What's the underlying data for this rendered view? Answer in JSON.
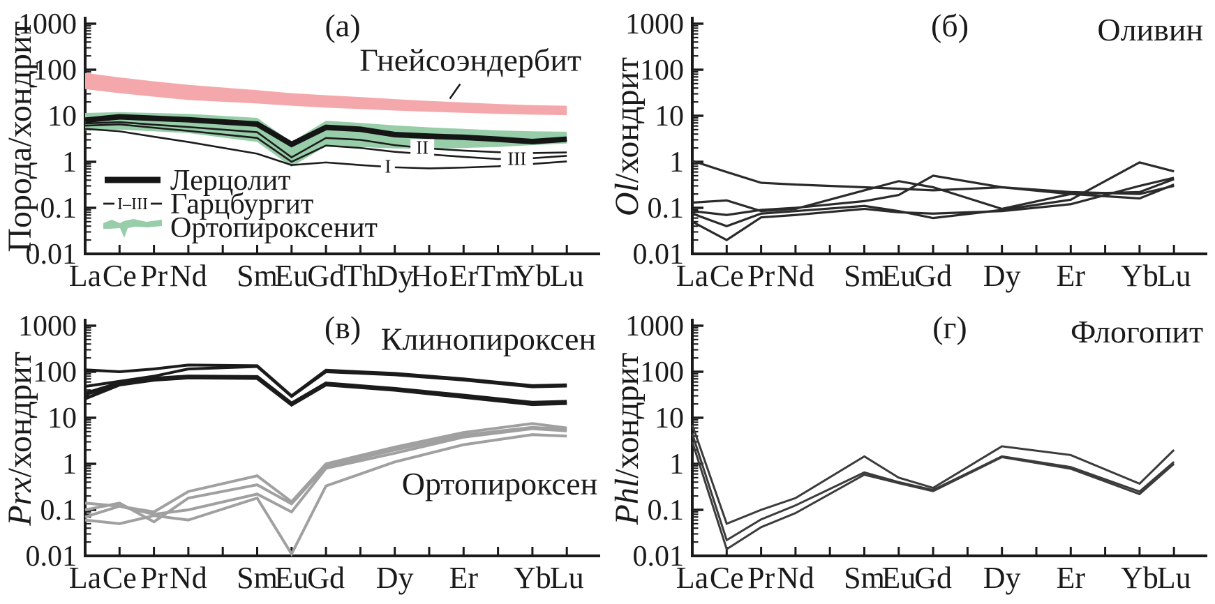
{
  "figure": {
    "background": "#ffffff",
    "axis_color": "#1a1a1a",
    "y_tick_labels": [
      "1000",
      "100",
      "10",
      "1",
      "0.1",
      "0.01"
    ],
    "y_tick_values": [
      1000,
      100,
      10,
      1,
      0.1,
      0.01
    ],
    "ylim": [
      0.01,
      1000
    ]
  },
  "chart_data": [
    {
      "id": "a",
      "type": "line",
      "letter": "(а)",
      "ylabel_italic": "",
      "ylabel_rest": "Порода/хондрит",
      "categories": [
        "La",
        "Ce",
        "Pr",
        "Nd",
        "Sm",
        "Eu",
        "Gd",
        "Th",
        "Dy",
        "Ho",
        "Er",
        "Tm",
        "Yb",
        "Lu"
      ],
      "category_slots": [
        0,
        1,
        2,
        3,
        5,
        6,
        7,
        8,
        9,
        10,
        11,
        12,
        13,
        14
      ],
      "bands": [
        {
          "name": "Гнейсоэндербит",
          "color": "#F5A8AB",
          "upper": [
            85,
            68,
            56,
            47,
            36,
            31,
            28,
            25.5,
            23,
            21,
            19.5,
            18,
            17,
            16.5
          ],
          "lower": [
            38,
            31,
            26,
            22,
            18.5,
            16.5,
            15,
            14,
            13,
            12.2,
            11.6,
            11,
            10.6,
            10.3
          ]
        },
        {
          "name": "Ортопироксенит",
          "color": "#97CDA8",
          "upper": [
            11.5,
            12,
            11.5,
            11,
            9,
            2.7,
            7.8,
            7,
            6.2,
            5.6,
            5.2,
            4.8,
            4.6,
            4.5
          ],
          "lower": [
            4.8,
            5,
            4.6,
            4.2,
            2.7,
            0.78,
            2.2,
            2.1,
            1.95,
            1.9,
            2.0,
            2.1,
            2.3,
            2.5
          ]
        }
      ],
      "series": [
        {
          "name": "Лерцолит",
          "color": "#151515",
          "width": 8,
          "values": [
            8,
            9.5,
            8.8,
            8.2,
            6.6,
            2.4,
            5.6,
            5.1,
            3.9,
            3.6,
            3.4,
            3.1,
            2.75,
            3.1
          ]
        },
        {
          "name": "Гарцбургит II",
          "color": "#1c1c1c",
          "width": 2.6,
          "values": [
            6.8,
            7.3,
            6.4,
            5.7,
            4.4,
            1.25,
            3.3,
            3.0,
            2.3,
            1.95,
            1.75,
            1.62,
            1.55,
            1.6
          ]
        },
        {
          "name": "Гарцбургит III",
          "color": "#1c1c1c",
          "width": 2.6,
          "values": [
            6.1,
            6.5,
            5.5,
            4.7,
            3.3,
            1.0,
            2.25,
            2.0,
            1.65,
            1.45,
            1.28,
            1.15,
            1.2,
            1.35
          ]
        },
        {
          "name": "Гарцбургит I",
          "color": "#1c1c1c",
          "width": 2.6,
          "values": [
            5.2,
            4.6,
            3.5,
            2.7,
            1.5,
            0.85,
            0.97,
            0.85,
            0.76,
            0.72,
            0.75,
            0.8,
            0.9,
            1.02
          ]
        }
      ],
      "line_labels": [
        {
          "text": "I",
          "slot": 8.8,
          "value": 0.8
        },
        {
          "text": "II",
          "slot": 9.8,
          "value": 2.05
        },
        {
          "text": "III",
          "slot": 12.55,
          "value": 1.17
        }
      ],
      "annotations": [
        {
          "text": "Гнейсоэндербит",
          "slot": 11.2,
          "value": 95,
          "anchor": "middle",
          "pointer": {
            "from_slot": 10.9,
            "from_value": 49,
            "to_slot": 10.6,
            "to_value": 23.5
          }
        }
      ],
      "legend": {
        "items": [
          {
            "symbol": "thick-line",
            "label": "Лерцолит"
          },
          {
            "symbol": "range-line",
            "range_text": "I–III",
            "label": "Гарцбургит"
          },
          {
            "symbol": "band",
            "label": "Ортопироксенит"
          }
        ]
      }
    },
    {
      "id": "b",
      "type": "line",
      "letter": "(б)",
      "ylabel_italic": "Ol",
      "ylabel_rest": "/хондрит",
      "categories": [
        "La",
        "Ce",
        "Pr",
        "Nd",
        "Sm",
        "Eu",
        "Gd",
        "Dy",
        "Er",
        "Yb",
        "Lu"
      ],
      "category_slots": [
        0,
        1,
        2,
        3,
        5,
        6,
        7,
        9,
        11,
        13,
        14
      ],
      "bands": [],
      "series": [
        {
          "name": "оливин 1",
          "color": "#2a2a2a",
          "width": 3.2,
          "values": [
            1.05,
            0.6,
            0.35,
            0.32,
            0.28,
            0.26,
            0.24,
            0.28,
            0.22,
            0.2,
            0.3
          ]
        },
        {
          "name": "оливин 2",
          "color": "#2a2a2a",
          "width": 3.2,
          "values": [
            0.13,
            0.145,
            0.085,
            0.095,
            0.24,
            0.38,
            0.28,
            0.095,
            0.2,
            0.22,
            0.42
          ]
        },
        {
          "name": "оливин 3",
          "color": "#2a2a2a",
          "width": 3.2,
          "values": [
            0.085,
            0.07,
            0.09,
            0.1,
            0.14,
            0.19,
            0.5,
            0.28,
            0.2,
            0.16,
            0.32
          ]
        },
        {
          "name": "оливин 4",
          "color": "#2a2a2a",
          "width": 3.2,
          "values": [
            0.075,
            0.04,
            0.075,
            0.085,
            0.11,
            0.085,
            0.06,
            0.09,
            0.15,
            0.97,
            0.62
          ]
        },
        {
          "name": "оливин 5",
          "color": "#2a2a2a",
          "width": 3.2,
          "values": [
            0.05,
            0.02,
            0.062,
            0.07,
            0.095,
            0.08,
            0.075,
            0.085,
            0.12,
            0.3,
            0.45
          ]
        }
      ],
      "line_labels": [],
      "annotations": [
        {
          "text": "Оливин",
          "slot": 14.85,
          "value": 430,
          "anchor": "end"
        }
      ]
    },
    {
      "id": "v",
      "type": "line",
      "letter": "(в)",
      "ylabel_italic": "Prx",
      "ylabel_rest": "/хондрит",
      "categories": [
        "La",
        "Ce",
        "Pr",
        "Nd",
        "Sm",
        "Eu",
        "Gd",
        "Dy",
        "Er",
        "Yb",
        "Lu"
      ],
      "category_slots": [
        0,
        1,
        2,
        3,
        5,
        6,
        7,
        9,
        11,
        13,
        14
      ],
      "bands": [],
      "series": [
        {
          "name": "клинопироксен 1",
          "color": "#1b1b1b",
          "width": 4,
          "values": [
            110,
            100,
            115,
            140,
            135,
            30,
            108,
            92,
            70,
            50,
            52
          ]
        },
        {
          "name": "клинопироксен 2",
          "color": "#1b1b1b",
          "width": 4,
          "values": [
            48,
            62,
            80,
            115,
            130,
            29,
            100,
            86,
            66,
            47,
            49
          ]
        },
        {
          "name": "клинопироксен 3",
          "color": "#1b1b1b",
          "width": 6,
          "values": [
            33,
            56,
            70,
            78,
            76,
            20,
            55,
            42,
            30,
            21,
            22
          ]
        },
        {
          "name": "клинопироксен 4",
          "color": "#1b1b1b",
          "width": 4.5,
          "values": [
            26,
            52,
            66,
            74,
            72,
            19,
            52,
            40,
            28,
            19.5,
            20.5
          ]
        },
        {
          "name": "ортопироксен 1",
          "color": "#a0a0a0",
          "width": 4,
          "values": [
            0.14,
            0.12,
            0.09,
            0.25,
            0.55,
            0.15,
            1.0,
            2.3,
            4.8,
            7.5,
            6.0
          ]
        },
        {
          "name": "ортопироксен 2",
          "color": "#a0a0a0",
          "width": 4,
          "values": [
            0.1,
            0.14,
            0.055,
            0.18,
            0.35,
            0.135,
            0.9,
            2.0,
            4.2,
            6.2,
            5.6
          ]
        },
        {
          "name": "ортопироксен 3",
          "color": "#a0a0a0",
          "width": 4,
          "values": [
            0.07,
            0.12,
            0.08,
            0.1,
            0.22,
            0.09,
            0.8,
            1.7,
            3.8,
            5.8,
            5.2
          ]
        },
        {
          "name": "ортопироксен 4",
          "color": "#a0a0a0",
          "width": 4,
          "values": [
            0.06,
            0.05,
            0.075,
            0.06,
            0.18,
            0.011,
            0.33,
            1.1,
            2.6,
            4.3,
            4.0
          ]
        }
      ],
      "line_labels": [],
      "annotations": [
        {
          "text": "Клинопироксен",
          "slot": 14.85,
          "value": 300,
          "anchor": "end"
        },
        {
          "text": "Ортопироксен",
          "slot": 12.05,
          "value": 0.215,
          "anchor": "middle"
        }
      ]
    },
    {
      "id": "g",
      "type": "line",
      "letter": "(г)",
      "ylabel_italic": "Phl",
      "ylabel_rest": "/хондрит",
      "categories": [
        "La",
        "Ce",
        "Pr",
        "Nd",
        "Sm",
        "Eu",
        "Gd",
        "Dy",
        "Er",
        "Yb",
        "Lu"
      ],
      "category_slots": [
        0,
        1,
        2,
        3,
        5,
        6,
        7,
        9,
        11,
        13,
        14
      ],
      "bands": [],
      "series": [
        {
          "name": "флогопит 1",
          "color": "#3b3b3b",
          "width": 3,
          "values": [
            7,
            0.05,
            0.1,
            0.18,
            1.45,
            0.5,
            0.3,
            2.4,
            1.55,
            0.37,
            2.0
          ]
        },
        {
          "name": "флогопит 2",
          "color": "#3b3b3b",
          "width": 3,
          "values": [
            4.5,
            0.022,
            0.062,
            0.125,
            0.65,
            0.4,
            0.27,
            1.45,
            0.85,
            0.25,
            1.1
          ]
        },
        {
          "name": "флогопит 3",
          "color": "#3b3b3b",
          "width": 3,
          "values": [
            3.0,
            0.014,
            0.042,
            0.085,
            0.58,
            0.38,
            0.255,
            1.4,
            0.78,
            0.22,
            1.0
          ]
        }
      ],
      "line_labels": [],
      "annotations": [
        {
          "text": "Флогопит",
          "slot": 14.85,
          "value": 430,
          "anchor": "end"
        }
      ]
    }
  ]
}
